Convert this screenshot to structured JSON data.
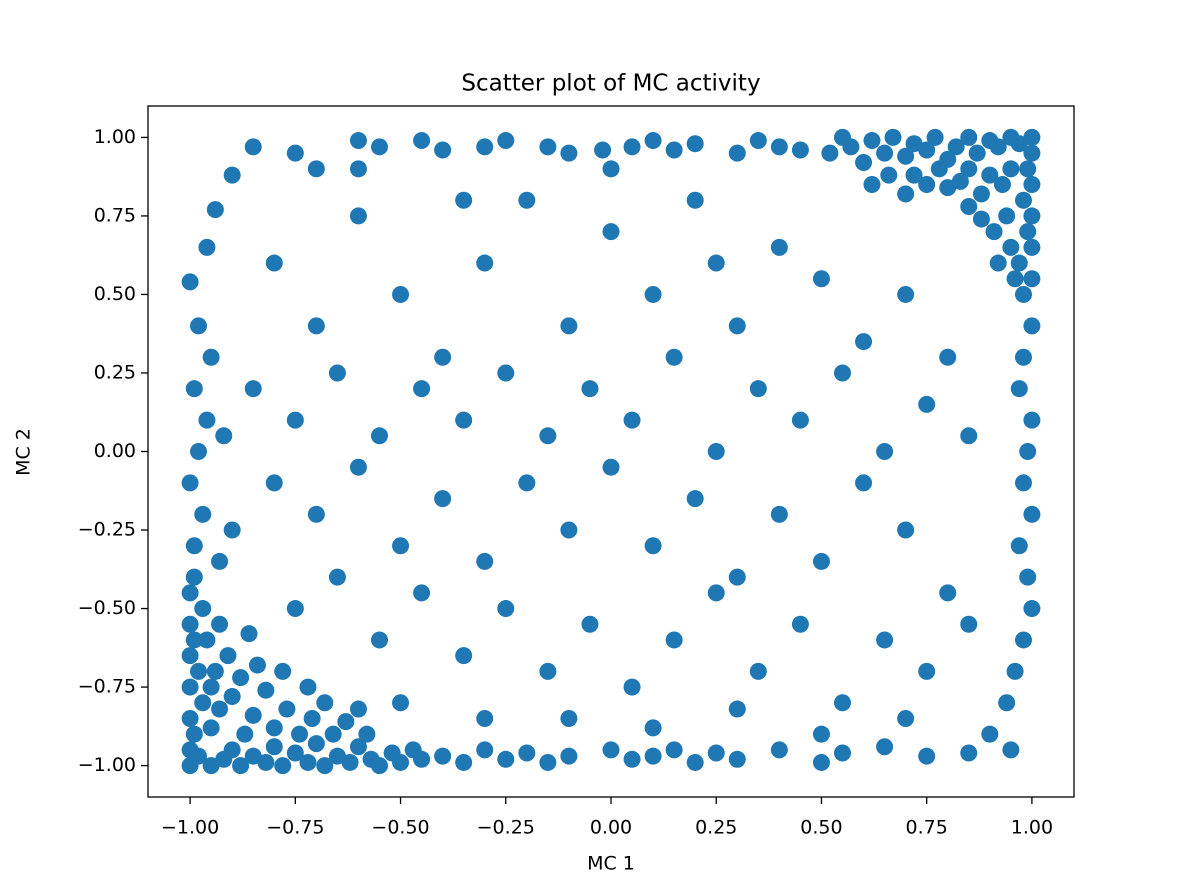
{
  "chart_data": {
    "type": "scatter",
    "title": "Scatter plot of MC activity",
    "x_label": "MC 1",
    "y_label": "MC 2",
    "color": "#1f77b4",
    "grid": false,
    "xlim": [
      -1.1,
      1.1
    ],
    "ylim": [
      -1.1,
      1.1
    ],
    "xticks": [
      {
        "value": -1,
        "label": "−1.00"
      },
      {
        "value": -0.75,
        "label": "−0.75"
      },
      {
        "value": -0.5,
        "label": "−0.50"
      },
      {
        "value": -0.25,
        "label": "−0.25"
      },
      {
        "value": 0,
        "label": "0.00"
      },
      {
        "value": 0.25,
        "label": "0.25"
      },
      {
        "value": 0.5,
        "label": "0.50"
      },
      {
        "value": 0.75,
        "label": "0.75"
      },
      {
        "value": 1,
        "label": "1.00"
      }
    ],
    "yticks": [
      {
        "value": -1,
        "label": "−1.00"
      },
      {
        "value": -0.75,
        "label": "−0.75"
      },
      {
        "value": -0.5,
        "label": "−0.50"
      },
      {
        "value": -0.25,
        "label": "−0.25"
      },
      {
        "value": 0,
        "label": "0.00"
      },
      {
        "value": 0.25,
        "label": "0.25"
      },
      {
        "value": 0.5,
        "label": "0.50"
      },
      {
        "value": 0.75,
        "label": "0.75"
      },
      {
        "value": 1,
        "label": "1.00"
      }
    ],
    "x": [
      -1,
      -0.98,
      -0.95,
      -0.92,
      -0.9,
      -0.88,
      -0.85,
      -0.82,
      -0.8,
      -0.78,
      -0.75,
      -0.72,
      -0.7,
      -0.68,
      -0.65,
      -0.62,
      -0.6,
      -0.57,
      -0.55,
      -0.52,
      -0.5,
      -0.47,
      -0.45,
      -1,
      -0.99,
      -1,
      -0.97,
      -1,
      -0.98,
      -1,
      -0.99,
      -1,
      -0.97,
      -1,
      -0.99,
      -0.95,
      -0.93,
      -0.9,
      -0.87,
      -0.85,
      -0.82,
      -0.8,
      -0.77,
      -0.74,
      -0.71,
      -0.68,
      -0.94,
      -0.91,
      -0.88,
      -0.84,
      -0.96,
      -0.93,
      -0.66,
      -0.63,
      -0.6,
      -0.58,
      -0.95,
      -0.78,
      -0.72,
      -0.86,
      1,
      0.97,
      0.95,
      0.92,
      0.9,
      0.87,
      0.85,
      0.82,
      0.8,
      0.77,
      0.75,
      0.72,
      0.7,
      0.67,
      0.65,
      0.62,
      0.6,
      0.57,
      0.55,
      0.52,
      1,
      0.99,
      1,
      0.98,
      1,
      0.99,
      1,
      0.97,
      1,
      0.98,
      0.95,
      0.93,
      0.9,
      0.88,
      0.85,
      0.83,
      0.8,
      0.78,
      0.75,
      0.72,
      0.94,
      0.91,
      0.88,
      0.95,
      0.92,
      0.7,
      0.66,
      0.62,
      0.85,
      0.96,
      -0.99,
      -0.97,
      -1,
      -0.98,
      -0.96,
      -0.99,
      -0.95,
      -0.98,
      -1,
      -0.96,
      -0.94,
      -0.9,
      -0.93,
      -0.9,
      -0.92,
      1,
      0.98,
      0.97,
      1,
      0.99,
      0.98,
      1,
      0.97,
      0.99,
      1,
      0.98,
      0.96,
      0.94,
      0.9,
      0.95,
      -0.85,
      -0.75,
      -0.6,
      -0.55,
      -0.45,
      -0.4,
      -0.3,
      -0.25,
      -0.15,
      -0.1,
      -0.02,
      0.05,
      0.1,
      0.15,
      0.2,
      0.3,
      0.35,
      0.4,
      0.45,
      -0.7,
      -0.4,
      -0.35,
      -0.3,
      -0.25,
      -0.2,
      -0.15,
      -0.1,
      0,
      0.05,
      0.1,
      0.15,
      0.2,
      0.25,
      0.3,
      0.4,
      0.5,
      0.55,
      0.65,
      0.75,
      0.85,
      -0.8,
      -0.7,
      -0.6,
      -0.5,
      -0.4,
      -0.3,
      -0.2,
      -0.1,
      0,
      0.1,
      0.2,
      0.3,
      0.4,
      0.5,
      0.6,
      0.7,
      0.8,
      -0.85,
      -0.75,
      -0.65,
      -0.55,
      -0.45,
      -0.35,
      -0.25,
      -0.15,
      -0.05,
      0.05,
      0.15,
      0.25,
      0.35,
      0.45,
      0.55,
      0.65,
      0.75,
      0.85,
      -0.8,
      -0.7,
      -0.6,
      -0.5,
      -0.4,
      -0.3,
      -0.2,
      -0.1,
      0,
      0.1,
      0.2,
      0.3,
      0.4,
      0.5,
      0.6,
      0.7,
      0.8,
      -0.75,
      -0.65,
      -0.55,
      -0.45,
      -0.35,
      -0.25,
      -0.15,
      -0.05,
      0.05,
      0.15,
      0.25,
      0.35,
      0.45,
      0.55,
      0.65,
      0.75,
      0.85,
      -0.5,
      -0.3,
      -0.1,
      0.1,
      0.3,
      0.5,
      0.7,
      -0.6,
      0,
      0.25,
      -0.35
    ],
    "values": [
      -1,
      -0.97,
      -1,
      -0.98,
      -0.95,
      -1,
      -0.97,
      -0.99,
      -0.94,
      -1,
      -0.96,
      -0.99,
      -0.93,
      -1,
      -0.97,
      -0.99,
      -0.94,
      -0.98,
      -1,
      -0.96,
      -0.99,
      -0.95,
      -0.98,
      -0.95,
      -0.9,
      -0.85,
      -0.8,
      -0.75,
      -0.7,
      -0.65,
      -0.6,
      -0.55,
      -0.5,
      -0.45,
      -0.4,
      -0.88,
      -0.82,
      -0.78,
      -0.9,
      -0.84,
      -0.76,
      -0.88,
      -0.82,
      -0.9,
      -0.85,
      -0.8,
      -0.7,
      -0.65,
      -0.72,
      -0.68,
      -0.6,
      -0.55,
      -0.9,
      -0.86,
      -0.82,
      -0.9,
      -0.75,
      -0.7,
      -0.75,
      -0.58,
      1,
      0.98,
      1,
      0.97,
      0.99,
      0.95,
      1,
      0.97,
      0.93,
      1,
      0.96,
      0.98,
      0.94,
      1,
      0.95,
      0.99,
      0.92,
      0.97,
      1,
      0.95,
      0.95,
      0.9,
      0.85,
      0.8,
      0.75,
      0.7,
      0.65,
      0.6,
      0.55,
      0.5,
      0.9,
      0.85,
      0.88,
      0.82,
      0.9,
      0.86,
      0.84,
      0.9,
      0.85,
      0.88,
      0.75,
      0.7,
      0.74,
      0.65,
      0.6,
      0.82,
      0.88,
      0.85,
      0.78,
      0.55,
      -0.3,
      -0.2,
      -0.1,
      0,
      0.1,
      0.2,
      0.3,
      0.4,
      0.54,
      0.65,
      0.77,
      0.88,
      -0.35,
      -0.25,
      0.05,
      0.4,
      0.3,
      0.2,
      0.1,
      0,
      -0.1,
      -0.2,
      -0.3,
      -0.4,
      -0.5,
      -0.6,
      -0.7,
      -0.8,
      -0.9,
      -0.95,
      0.97,
      0.95,
      0.99,
      0.97,
      0.99,
      0.96,
      0.97,
      0.99,
      0.97,
      0.95,
      0.96,
      0.97,
      0.99,
      0.96,
      0.98,
      0.95,
      0.99,
      0.97,
      0.96,
      0.9,
      -0.97,
      -0.99,
      -0.95,
      -0.98,
      -0.96,
      -0.99,
      -0.97,
      -0.95,
      -0.98,
      -0.97,
      -0.95,
      -0.99,
      -0.96,
      -0.98,
      -0.95,
      -0.99,
      -0.96,
      -0.94,
      -0.97,
      -0.96,
      0.6,
      0.4,
      0.75,
      0.5,
      0.3,
      0.6,
      0.8,
      0.4,
      0.7,
      0.5,
      0.8,
      0.4,
      0.65,
      0.55,
      0.35,
      0.5,
      0.3,
      0.2,
      0.1,
      0.25,
      0.05,
      0.2,
      0.1,
      0.25,
      0.05,
      0.2,
      0.1,
      0.3,
      0,
      0.2,
      0.1,
      0.25,
      0,
      0.15,
      0.05,
      -0.1,
      -0.2,
      -0.05,
      -0.3,
      -0.15,
      -0.35,
      -0.1,
      -0.25,
      -0.05,
      -0.3,
      -0.15,
      -0.4,
      -0.2,
      -0.35,
      -0.1,
      -0.25,
      -0.45,
      -0.5,
      -0.4,
      -0.6,
      -0.45,
      -0.65,
      -0.5,
      -0.7,
      -0.55,
      -0.75,
      -0.6,
      -0.45,
      -0.7,
      -0.55,
      -0.8,
      -0.6,
      -0.7,
      -0.55,
      -0.8,
      -0.85,
      -0.85,
      -0.88,
      -0.82,
      -0.9,
      -0.85,
      0.9,
      0.9,
      0.6,
      0.8
    ]
  }
}
